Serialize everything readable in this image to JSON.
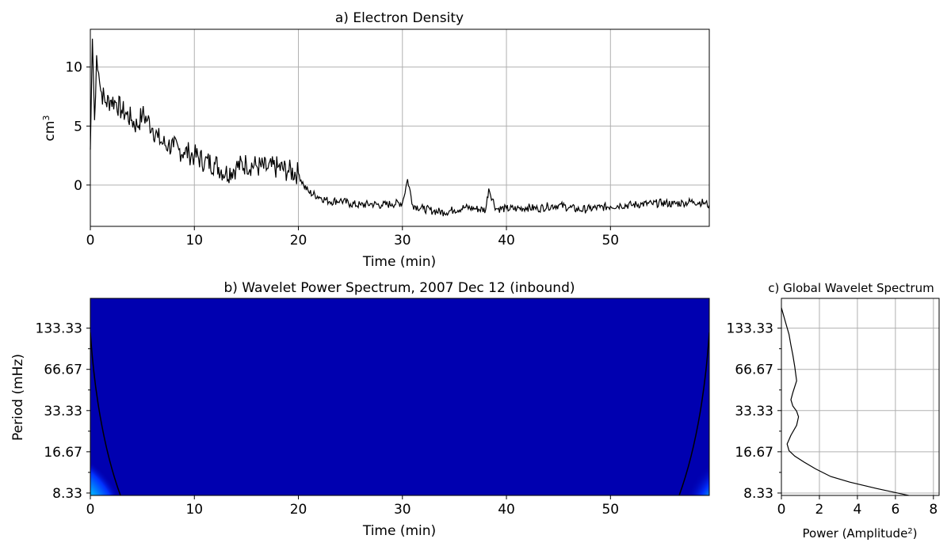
{
  "chart_data": [
    {
      "type": "line",
      "title": "a) Electron Density",
      "xlabel": "Time (min)",
      "ylabel": "cm",
      "ylabel_sup": "3",
      "xlim": [
        0,
        59.5
      ],
      "ylim": [
        -3.5,
        13.2
      ],
      "xticks": [
        0,
        10,
        20,
        30,
        40,
        50
      ],
      "yticks": [
        0,
        5,
        10
      ],
      "grid": true,
      "series": [
        {
          "color": "#000000",
          "x": [
            0,
            0.2,
            0.4,
            0.6,
            0.8,
            1,
            1.5,
            2,
            2.5,
            3,
            3.5,
            4,
            4.5,
            5,
            5.5,
            6,
            6.5,
            7,
            7.5,
            8,
            8.5,
            9,
            9.5,
            10,
            11,
            12,
            13,
            14,
            15,
            16,
            17,
            18,
            19,
            20,
            20.5,
            21,
            22,
            23,
            24,
            25,
            26,
            27,
            28,
            29,
            30,
            30.5,
            31,
            32,
            33,
            34,
            35,
            36,
            37,
            38,
            38.3,
            39,
            40,
            41,
            42,
            43,
            44,
            45,
            46,
            47,
            48,
            49,
            50,
            51,
            52,
            53,
            54,
            55,
            56,
            57,
            58,
            59,
            59.5
          ],
          "y": [
            3,
            12.4,
            5.5,
            11,
            9.5,
            8,
            7,
            7.2,
            7,
            6.3,
            6,
            5.5,
            5,
            6,
            5.5,
            4.8,
            4,
            3.5,
            3.4,
            3.2,
            3,
            2.8,
            2.7,
            2.5,
            2,
            1.8,
            1,
            1.5,
            1.8,
            1.6,
            1.4,
            1.5,
            1.2,
            1,
            0,
            -0.6,
            -1,
            -1.4,
            -1.3,
            -1.6,
            -1.7,
            -1.6,
            -1.7,
            -1.6,
            -1.5,
            0.5,
            -1.7,
            -2,
            -2.2,
            -2.3,
            -2.1,
            -1.9,
            -2,
            -2.1,
            -0.3,
            -2,
            -2,
            -2,
            -1.9,
            -2,
            -1.8,
            -1.7,
            -1.9,
            -2.1,
            -2,
            -1.9,
            -1.8,
            -1.7,
            -1.7,
            -1.6,
            -1.6,
            -1.5,
            -1.6,
            -1.5,
            -1.4,
            -1.5,
            -1.7
          ]
        }
      ]
    },
    {
      "type": "heatmap",
      "title": "b) Wavelet Power Spectrum, 2007 Dec 12 (inbound)",
      "xlabel": "Time (min)",
      "ylabel": "Period (mHz)",
      "xlim": [
        0,
        59.5
      ],
      "xticks": [
        0,
        10,
        20,
        30,
        40,
        50
      ],
      "yticks": [
        "133.33",
        "66.67",
        "33.33",
        "16.67",
        "8.33"
      ],
      "background_color": "#0000b0",
      "colormap": [
        "#0000b0",
        "#0030ff",
        "#00a0ff",
        "#00e0e0",
        "#60ff90",
        "#e0e000",
        "#ff8000",
        "#e00000"
      ],
      "hotspots": [
        {
          "time": 0,
          "period": 8.33,
          "level": 7
        },
        {
          "time": 59.5,
          "period": 8.33,
          "level": 6
        }
      ],
      "cone_of_influence": true
    },
    {
      "type": "line",
      "title": "c) Global Wavelet Spectrum",
      "xlabel": "Power (Amplitude",
      "xlabel_sup": "2",
      "xlabel_end": ")",
      "xlim": [
        0,
        8.3
      ],
      "xticks": [
        0,
        2,
        4,
        6,
        8
      ],
      "yticks": [
        "133.33",
        "66.67",
        "33.33",
        "16.67",
        "8.33"
      ],
      "grid": true,
      "series": [
        {
          "color": "#000000",
          "power": [
            0,
            0.2,
            0.4,
            0.5,
            0.6,
            0.7,
            0.8,
            0.6,
            0.5,
            0.6,
            0.8,
            0.9,
            0.8,
            0.5,
            0.3,
            0.4,
            0.7,
            1.2,
            1.8,
            2.6,
            3.6,
            5,
            6.7
          ],
          "period": [
            188,
            150,
            120,
            100,
            85,
            70,
            55,
            45,
            40,
            36,
            33,
            30,
            26,
            22,
            19,
            17,
            15.5,
            14,
            12.5,
            11,
            10,
            9,
            8
          ]
        }
      ]
    }
  ]
}
